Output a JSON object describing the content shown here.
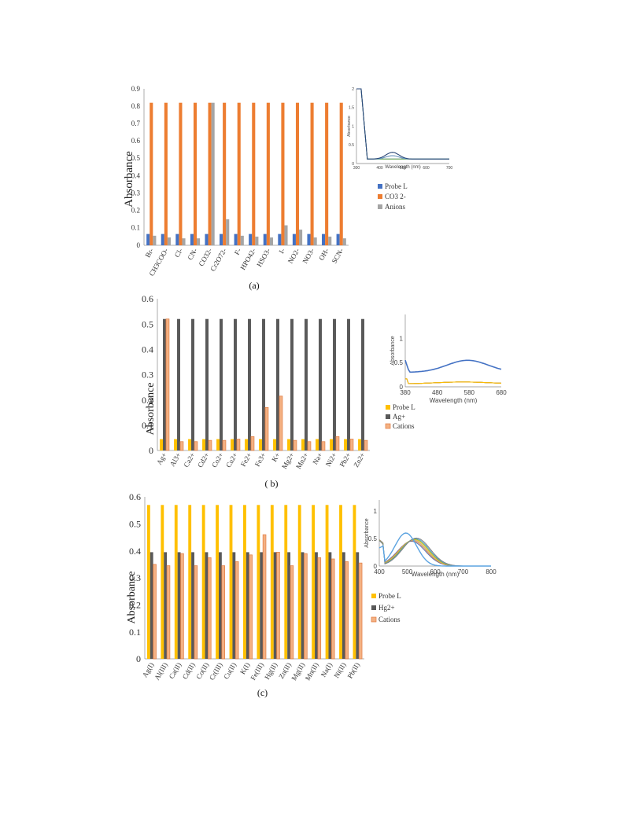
{
  "chart_data": [
    {
      "type": "bar",
      "panel_label": "(a)",
      "ylabel": "Absorbance",
      "ylim": [
        0,
        0.9
      ],
      "yticks": [
        "0",
        "0.1",
        "0.2",
        "0.3",
        "0.4",
        "0.5",
        "0.6",
        "0.7",
        "0.8",
        "0.9"
      ],
      "categories": [
        "Br-",
        "CH3COO-",
        "Cl-",
        "CN-",
        "CO32-",
        "Cr2O72-",
        "F-",
        "HPO42-",
        "HSO3-",
        "I-",
        "NO2-",
        "NO3-",
        "OH-",
        "SCN-"
      ],
      "series": [
        {
          "name": "Probe L",
          "color": "#4472C4",
          "values": [
            0.065,
            0.065,
            0.065,
            0.065,
            0.065,
            0.065,
            0.065,
            0.065,
            0.065,
            0.065,
            0.065,
            0.065,
            0.065,
            0.065
          ]
        },
        {
          "name": "CO3 2-",
          "color": "#ED7D31",
          "values": [
            0.82,
            0.82,
            0.82,
            0.82,
            0.82,
            0.82,
            0.82,
            0.82,
            0.82,
            0.82,
            0.82,
            0.82,
            0.82,
            0.82
          ]
        },
        {
          "name": "Anions",
          "color": "#A5A5A5",
          "values": [
            0.055,
            0.045,
            0.04,
            0.04,
            0.82,
            0.15,
            0.055,
            0.05,
            0.045,
            0.115,
            0.09,
            0.045,
            0.05,
            0.04
          ]
        }
      ],
      "legend": "right",
      "inset": {
        "xlabel": "Wavelength (nm)",
        "ylabel": "Absorbance",
        "xticks": [
          "300",
          "400",
          "500",
          "600",
          "700"
        ],
        "yticks": [
          "0",
          "0.5",
          "1",
          "1.5",
          "2"
        ]
      }
    },
    {
      "type": "bar",
      "panel_label": "( b)",
      "ylabel": "Absorbance",
      "ylim": [
        0,
        0.6
      ],
      "yticks": [
        "0",
        "0.1",
        "0.2",
        "0.3",
        "0.4",
        "0.5",
        "0.6"
      ],
      "categories": [
        "Ag+",
        "Al3+",
        "Ca2+",
        "Cd2+",
        "Co2+",
        "Cu2+",
        "Fe2+",
        "Fe3+",
        "K+",
        "Mg2+",
        "Mn2+",
        "Na+",
        "Ni2+",
        "Pb2+",
        "Zn2+"
      ],
      "series": [
        {
          "name": "Probe L",
          "color": "#FFC000",
          "values": [
            0.045,
            0.045,
            0.045,
            0.045,
            0.045,
            0.045,
            0.045,
            0.045,
            0.045,
            0.045,
            0.045,
            0.045,
            0.045,
            0.045,
            0.045
          ]
        },
        {
          "name": "Ag+",
          "color": "#595959",
          "values": [
            0.52,
            0.52,
            0.52,
            0.52,
            0.52,
            0.52,
            0.52,
            0.52,
            0.52,
            0.52,
            0.52,
            0.52,
            0.52,
            0.52,
            0.52
          ]
        },
        {
          "name": "Cations",
          "color": "#F4B183",
          "values": [
            0.52,
            0.035,
            0.035,
            0.04,
            0.04,
            0.045,
            0.055,
            0.17,
            0.215,
            0.04,
            0.035,
            0.035,
            0.055,
            0.045,
            0.04
          ]
        }
      ],
      "legend": "right",
      "inset": {
        "xlabel": "Wavelength (nm)",
        "ylabel": "Absorbance",
        "xticks": [
          "380",
          "480",
          "580",
          "680"
        ],
        "yticks": [
          "0",
          "0.5",
          "1"
        ]
      }
    },
    {
      "type": "bar",
      "panel_label": "(c)",
      "ylabel": "Absorbance",
      "ylim": [
        0,
        0.6
      ],
      "yticks": [
        "0",
        "0.1",
        "0.2",
        "0.3",
        "0.4",
        "0.5",
        "0.6"
      ],
      "categories": [
        "Ag(I)",
        "Al(III)",
        "Ca(II)",
        "Cd(II)",
        "Co(II)",
        "Cr(III)",
        "Cu(II)",
        "K(I)",
        "Fe(III)",
        "Hg(II)",
        "Zn(II)",
        "Mg(II)",
        "Mn(II)",
        "Na(I)",
        "Ni(II)",
        "Pb(II)"
      ],
      "series": [
        {
          "name": "Probe L",
          "color": "#FFC000",
          "values": [
            0.57,
            0.57,
            0.57,
            0.57,
            0.57,
            0.57,
            0.57,
            0.57,
            0.57,
            0.57,
            0.57,
            0.57,
            0.57,
            0.57,
            0.57,
            0.57
          ]
        },
        {
          "name": "Hg2+",
          "color": "#595959",
          "values": [
            0.395,
            0.395,
            0.395,
            0.395,
            0.395,
            0.395,
            0.395,
            0.395,
            0.395,
            0.395,
            0.395,
            0.395,
            0.395,
            0.395,
            0.395,
            0.395
          ]
        },
        {
          "name": "Cations",
          "color": "#F4B183",
          "values": [
            0.35,
            0.345,
            0.39,
            0.345,
            0.375,
            0.345,
            0.36,
            0.385,
            0.46,
            0.395,
            0.345,
            0.39,
            0.375,
            0.37,
            0.36,
            0.355
          ]
        }
      ],
      "legend": "right",
      "inset": {
        "xlabel": "Wavelength (nm)",
        "ylabel": "Absorbance",
        "xticks": [
          "400",
          "500",
          "600",
          "700",
          "800"
        ],
        "yticks": [
          "0",
          "0.5",
          "1"
        ]
      }
    }
  ]
}
